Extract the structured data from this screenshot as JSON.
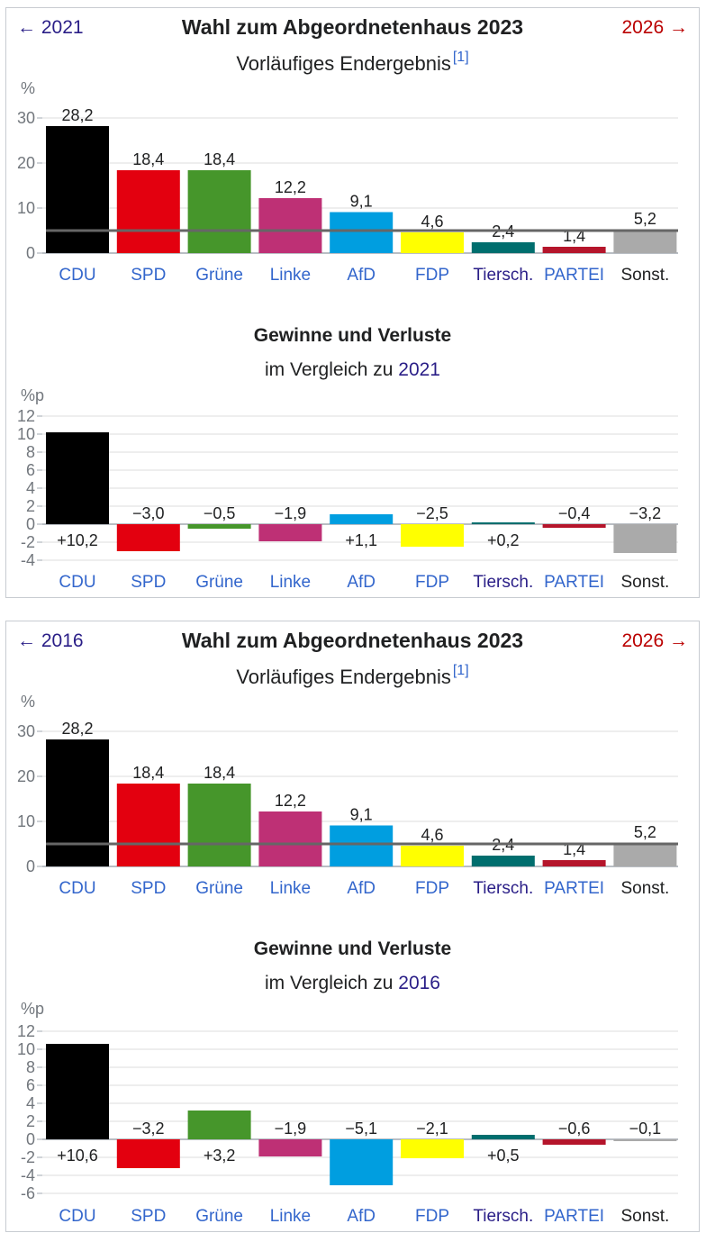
{
  "panels": [
    {
      "nav_prev": "← 2021",
      "nav_next": "2026 →",
      "title": "Wahl zum Abgeordnetenhaus 2023",
      "subtitle": "Vorläufiges Endergebnis",
      "footnote": "[1]",
      "diff_title": "Gewinne und Verluste",
      "diff_subtitle_prefix": "im Vergleich zu",
      "diff_subtitle_year": "2021"
    },
    {
      "nav_prev": "← 2016",
      "nav_next": "2026 →",
      "title": "Wahl zum Abgeordnetenhaus 2023",
      "subtitle": "Vorläufiges Endergebnis",
      "footnote": "[1]",
      "diff_title": "Gewinne und Verluste",
      "diff_subtitle_prefix": "im Vergleich zu",
      "diff_subtitle_year": "2016"
    }
  ],
  "colors": {
    "link": "#3366cc",
    "visited_link": "#2a1e87",
    "new_link": "#ba0000",
    "threshold_line": "#666666"
  },
  "chart_data": [
    {
      "type": "bar",
      "title": "Vorläufiges Endergebnis",
      "ylabel": "%",
      "categories": [
        "CDU",
        "SPD",
        "Grüne",
        "Linke",
        "AfD",
        "FDP",
        "Tiersch.",
        "PARTEI",
        "Sonst."
      ],
      "category_colors": [
        "#000000",
        "#e3000f",
        "#46962b",
        "#be3075",
        "#009ee0",
        "#ffff00",
        "#006e6e",
        "#b5152b",
        "#aaaaaa"
      ],
      "category_label_colors": [
        "#3366cc",
        "#3366cc",
        "#3366cc",
        "#3366cc",
        "#3366cc",
        "#3366cc",
        "#2a1e87",
        "#3366cc",
        "#202122"
      ],
      "values": [
        28.2,
        18.4,
        18.4,
        12.2,
        9.1,
        4.6,
        2.4,
        1.4,
        5.2
      ],
      "value_labels": [
        "28,2",
        "18,4",
        "18,4",
        "12,2",
        "9,1",
        "4,6",
        "2,4",
        "1,4",
        "5,2"
      ],
      "yticks": [
        0,
        10,
        20,
        30
      ],
      "ylim": [
        0,
        30
      ],
      "threshold": 5,
      "grid": true
    },
    {
      "type": "bar",
      "title": "Gewinne und Verluste im Vergleich zu 2021",
      "ylabel": "%p",
      "categories": [
        "CDU",
        "SPD",
        "Grüne",
        "Linke",
        "AfD",
        "FDP",
        "Tiersch.",
        "PARTEI",
        "Sonst."
      ],
      "category_colors": [
        "#000000",
        "#e3000f",
        "#46962b",
        "#be3075",
        "#009ee0",
        "#ffff00",
        "#006e6e",
        "#b5152b",
        "#aaaaaa"
      ],
      "category_label_colors": [
        "#3366cc",
        "#3366cc",
        "#3366cc",
        "#3366cc",
        "#3366cc",
        "#3366cc",
        "#2a1e87",
        "#3366cc",
        "#202122"
      ],
      "values": [
        10.2,
        -3.0,
        -0.5,
        -1.9,
        1.1,
        -2.5,
        0.2,
        -0.4,
        -3.2
      ],
      "value_labels": [
        "+10,2",
        "−3,0",
        "−0,5",
        "−1,9",
        "+1,1",
        "−2,5",
        "+0,2",
        "−0,4",
        "−3,2"
      ],
      "yticks": [
        -4,
        -2,
        0,
        2,
        4,
        6,
        8,
        10,
        12
      ],
      "ylim": [
        -4,
        12
      ],
      "grid": true
    },
    {
      "type": "bar",
      "title": "Vorläufiges Endergebnis",
      "ylabel": "%",
      "categories": [
        "CDU",
        "SPD",
        "Grüne",
        "Linke",
        "AfD",
        "FDP",
        "Tiersch.",
        "PARTEI",
        "Sonst."
      ],
      "category_colors": [
        "#000000",
        "#e3000f",
        "#46962b",
        "#be3075",
        "#009ee0",
        "#ffff00",
        "#006e6e",
        "#b5152b",
        "#aaaaaa"
      ],
      "category_label_colors": [
        "#3366cc",
        "#3366cc",
        "#3366cc",
        "#3366cc",
        "#3366cc",
        "#3366cc",
        "#2a1e87",
        "#3366cc",
        "#202122"
      ],
      "values": [
        28.2,
        18.4,
        18.4,
        12.2,
        9.1,
        4.6,
        2.4,
        1.4,
        5.2
      ],
      "value_labels": [
        "28,2",
        "18,4",
        "18,4",
        "12,2",
        "9,1",
        "4,6",
        "2,4",
        "1,4",
        "5,2"
      ],
      "yticks": [
        0,
        10,
        20,
        30
      ],
      "ylim": [
        0,
        30
      ],
      "threshold": 5,
      "grid": true
    },
    {
      "type": "bar",
      "title": "Gewinne und Verluste im Vergleich zu 2016",
      "ylabel": "%p",
      "categories": [
        "CDU",
        "SPD",
        "Grüne",
        "Linke",
        "AfD",
        "FDP",
        "Tiersch.",
        "PARTEI",
        "Sonst."
      ],
      "category_colors": [
        "#000000",
        "#e3000f",
        "#46962b",
        "#be3075",
        "#009ee0",
        "#ffff00",
        "#006e6e",
        "#b5152b",
        "#aaaaaa"
      ],
      "category_label_colors": [
        "#3366cc",
        "#3366cc",
        "#3366cc",
        "#3366cc",
        "#3366cc",
        "#3366cc",
        "#2a1e87",
        "#3366cc",
        "#202122"
      ],
      "values": [
        10.6,
        -3.2,
        3.2,
        -1.9,
        -5.1,
        -2.1,
        0.5,
        -0.6,
        -0.1
      ],
      "value_labels": [
        "+10,6",
        "−3,2",
        "+3,2",
        "−1,9",
        "−5,1",
        "−2,1",
        "+0,5",
        "−0,6",
        "−0,1"
      ],
      "yticks": [
        -6,
        -4,
        -2,
        0,
        2,
        4,
        6,
        8,
        10,
        12
      ],
      "ylim": [
        -6,
        12
      ],
      "grid": true
    }
  ]
}
